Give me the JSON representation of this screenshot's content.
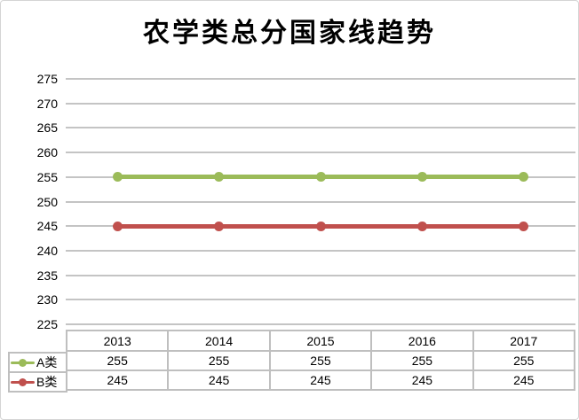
{
  "chart_data": {
    "type": "line",
    "title": "农学类总分国家线趋势",
    "categories": [
      "2013",
      "2014",
      "2015",
      "2016",
      "2017"
    ],
    "series": [
      {
        "name": "A类",
        "values": [
          255,
          255,
          255,
          255,
          255
        ],
        "color": "#9BBB59"
      },
      {
        "name": "B类",
        "values": [
          245,
          245,
          245,
          245,
          245
        ],
        "color": "#C0504D"
      }
    ],
    "ylim": [
      225,
      275
    ],
    "yticks": [
      275,
      270,
      265,
      260,
      255,
      250,
      245,
      240,
      235,
      230,
      225
    ],
    "ytick_step": 5,
    "grid": true,
    "marker": "circle",
    "legend_position": "data-table-left",
    "data_table_shown": true
  },
  "colors": {
    "series_a_green": "#9BBB59",
    "series_b_red": "#C0504D",
    "gridline": "#C4C4C4",
    "table_border": "#BFBFBF",
    "text": "#000000",
    "background": "#FFFFFF",
    "frame_border": "#D4D4D4"
  }
}
